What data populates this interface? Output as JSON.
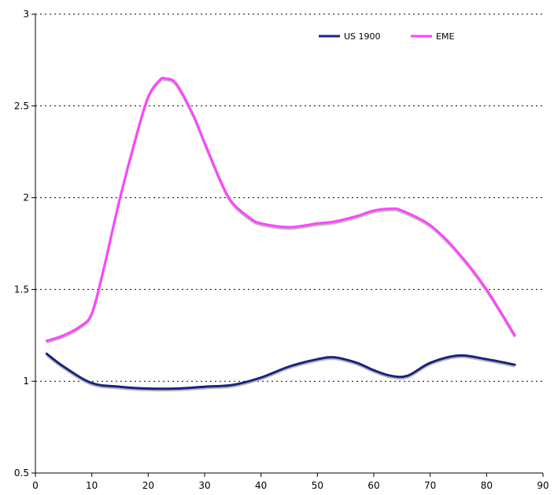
{
  "chart_data": {
    "type": "line",
    "title": "",
    "xlabel": "",
    "ylabel": "",
    "xlim": [
      0,
      90
    ],
    "ylim": [
      0.5,
      3
    ],
    "x_ticks": [
      "0",
      "10",
      "20",
      "30",
      "40",
      "50",
      "60",
      "70",
      "80",
      "90"
    ],
    "y_ticks": [
      "0.5",
      "1",
      "1.5",
      "2",
      "2.5",
      "3"
    ],
    "grid": "horizontal dotted",
    "legend": "top-right",
    "series": [
      {
        "name": "US 1900",
        "color": "#1a237e",
        "points": [
          [
            2,
            1.15
          ],
          [
            5,
            1.08
          ],
          [
            10,
            0.99
          ],
          [
            15,
            0.97
          ],
          [
            20,
            0.96
          ],
          [
            25,
            0.96
          ],
          [
            30,
            0.97
          ],
          [
            35,
            0.98
          ],
          [
            40,
            1.02
          ],
          [
            45,
            1.08
          ],
          [
            50,
            1.12
          ],
          [
            53,
            1.13
          ],
          [
            57,
            1.1
          ],
          [
            60,
            1.06
          ],
          [
            63,
            1.03
          ],
          [
            66,
            1.03
          ],
          [
            70,
            1.1
          ],
          [
            75,
            1.14
          ],
          [
            80,
            1.12
          ],
          [
            85,
            1.09
          ]
        ]
      },
      {
        "name": "EME",
        "color": "#ff44ff",
        "points": [
          [
            2,
            1.22
          ],
          [
            5,
            1.25
          ],
          [
            8,
            1.3
          ],
          [
            10,
            1.37
          ],
          [
            12,
            1.6
          ],
          [
            15,
            2.0
          ],
          [
            18,
            2.35
          ],
          [
            20,
            2.55
          ],
          [
            22,
            2.64
          ],
          [
            23,
            2.65
          ],
          [
            25,
            2.62
          ],
          [
            28,
            2.45
          ],
          [
            30,
            2.3
          ],
          [
            33,
            2.08
          ],
          [
            35,
            1.97
          ],
          [
            38,
            1.89
          ],
          [
            40,
            1.86
          ],
          [
            45,
            1.84
          ],
          [
            50,
            1.86
          ],
          [
            53,
            1.87
          ],
          [
            57,
            1.9
          ],
          [
            60,
            1.93
          ],
          [
            63,
            1.94
          ],
          [
            65,
            1.93
          ],
          [
            70,
            1.85
          ],
          [
            75,
            1.7
          ],
          [
            80,
            1.5
          ],
          [
            85,
            1.25
          ]
        ]
      }
    ]
  }
}
